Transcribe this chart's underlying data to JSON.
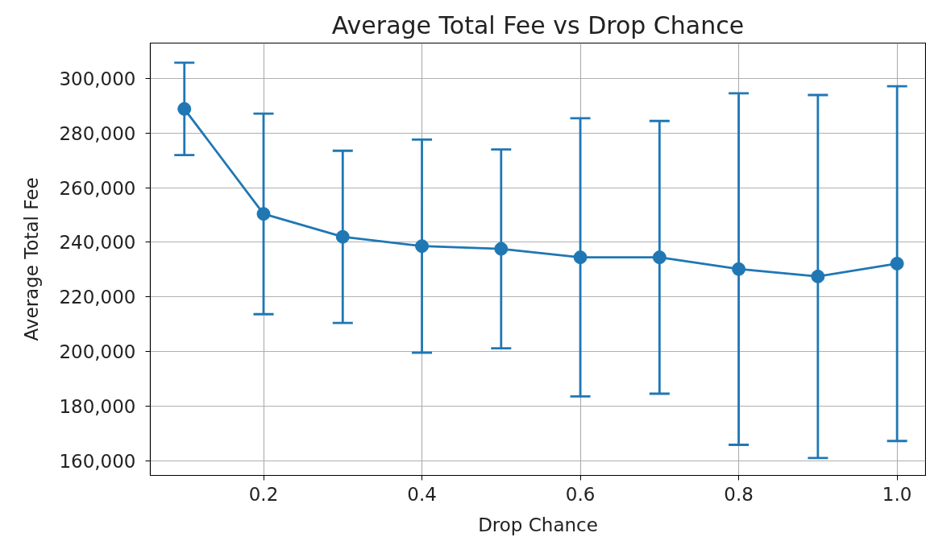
{
  "chart_data": {
    "type": "line",
    "title": "Average Total Fee vs Drop Chance",
    "xlabel": "Drop Chance",
    "ylabel": "Average Total Fee",
    "x": [
      0.1,
      0.2,
      0.3,
      0.4,
      0.5,
      0.6,
      0.7,
      0.8,
      0.9,
      1.0
    ],
    "series": [
      {
        "color": "#1f77b4",
        "values": [
          288800,
          250400,
          242000,
          238600,
          237600,
          234500,
          234500,
          230200,
          227500,
          232200
        ],
        "errors": [
          16900,
          36700,
          31500,
          39000,
          36400,
          50900,
          49900,
          64300,
          66400,
          64900
        ]
      }
    ],
    "xlim": [
      0.057,
      1.036
    ],
    "ylim": [
      154700,
      312900
    ],
    "xticks": [
      0.2,
      0.4,
      0.6,
      0.8,
      {
        "value": 1.0,
        "label": "1.0"
      }
    ],
    "yticks": [
      {
        "value": 160000,
        "label": "160,000"
      },
      {
        "value": 180000,
        "label": "180,000"
      },
      {
        "value": 200000,
        "label": "200,000"
      },
      {
        "value": 220000,
        "label": "220,000"
      },
      {
        "value": 240000,
        "label": "240,000"
      },
      {
        "value": 260000,
        "label": "260,000"
      },
      {
        "value": 280000,
        "label": "280,000"
      },
      {
        "value": 300000,
        "label": "300,000"
      }
    ],
    "grid": true,
    "marker": "circle",
    "line_style": "solid"
  }
}
